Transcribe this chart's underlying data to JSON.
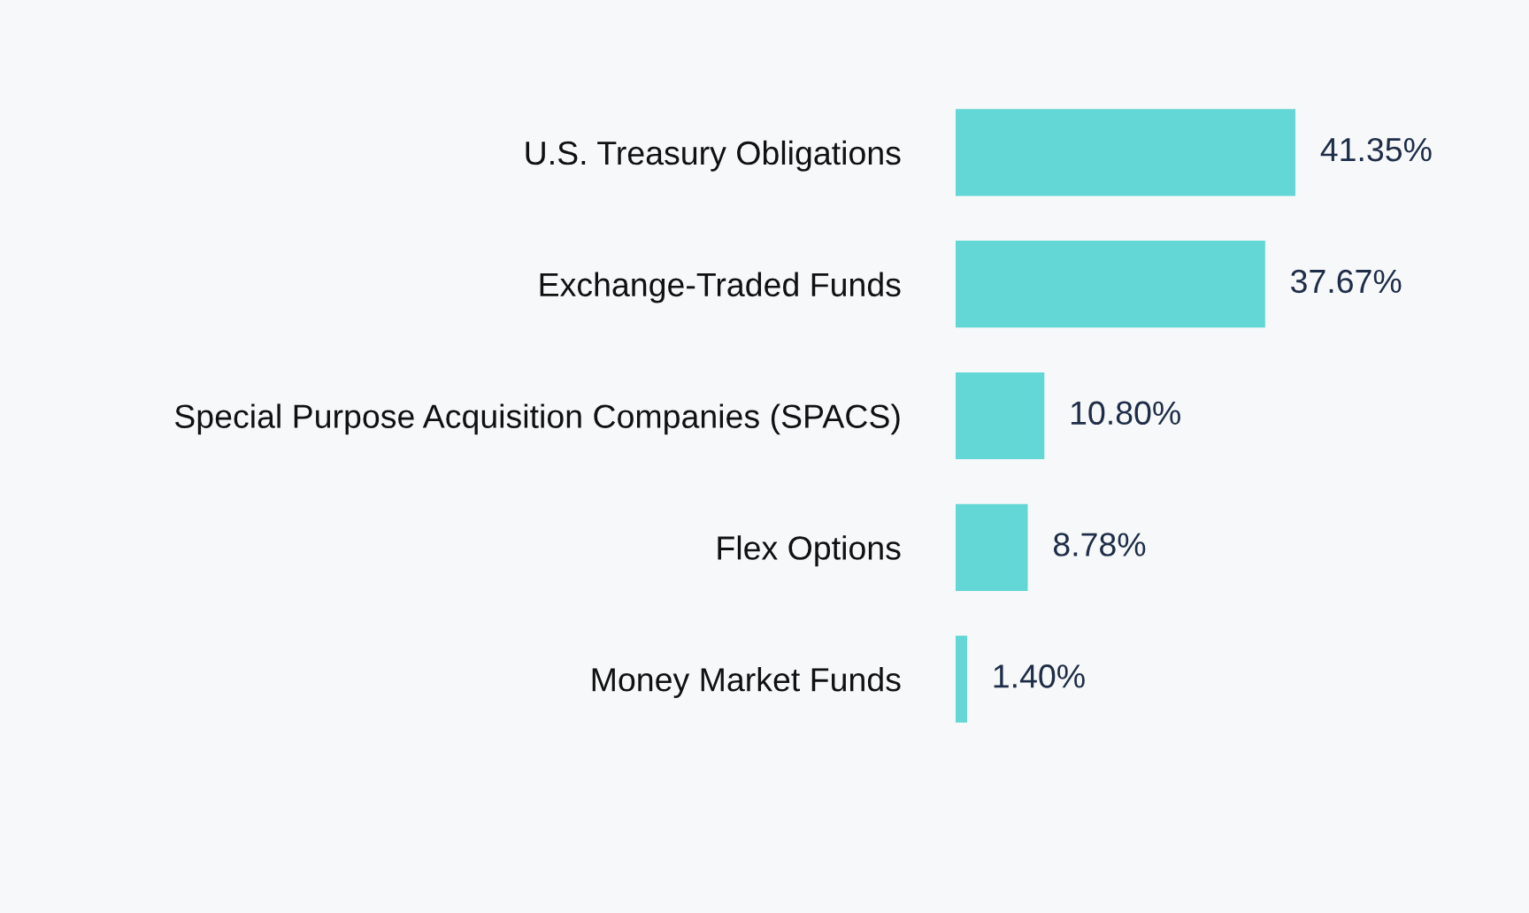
{
  "chart_data": {
    "type": "bar",
    "orientation": "horizontal",
    "categories": [
      "U.S. Treasury Obligations",
      "Exchange-Traded Funds",
      "Special Purpose Acquisition Companies (SPACS)",
      "Flex Options",
      "Money Market Funds"
    ],
    "values": [
      41.35,
      37.67,
      10.8,
      8.78,
      1.4
    ],
    "value_labels": [
      "41.35%",
      "37.67%",
      "10.80%",
      "8.78%",
      "1.40%"
    ],
    "color": "#63d7d5",
    "grid": false,
    "legend": false
  }
}
